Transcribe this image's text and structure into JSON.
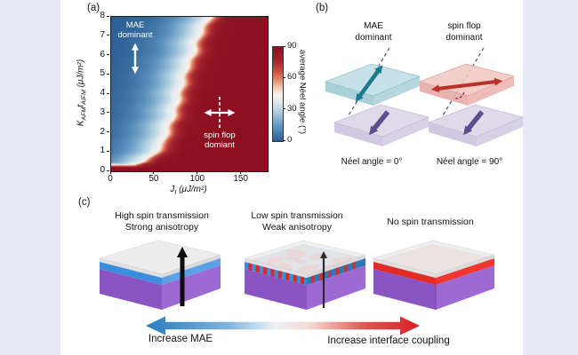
{
  "page": {
    "panel_a_label": "(a)",
    "panel_b_label": "(b)",
    "panel_c_label": "(c)"
  },
  "panel_a": {
    "overlay": {
      "mae_line1": "MAE",
      "mae_line2": "dominant",
      "sf_line1": "spin flop",
      "sf_line2": "domiant"
    },
    "axis": {
      "xlabel_sym": "J",
      "xlabel_sub": "I",
      "xlabel_units": " (μJ/m²)",
      "ylabel_k": "K",
      "ylabel_k_sub": "AFM",
      "ylabel_t": "t",
      "ylabel_t_sub": "AIFM",
      "ylabel_units": " (μJ/m²)"
    },
    "colorbar_label": "average Néel angle (°)"
  },
  "chart_data": {
    "type": "heatmap",
    "title": "",
    "xlabel": "J_I (μJ/m²)",
    "ylabel": "K_AFM t_AIFM (μJ/m²)",
    "xlim": [
      0,
      180
    ],
    "ylim": [
      0,
      8
    ],
    "xticks": [
      0,
      50,
      100,
      150
    ],
    "yticks": [
      0,
      1,
      2,
      3,
      4,
      5,
      6,
      7,
      8
    ],
    "value_label": "average Néel angle (°)",
    "value_range": [
      0,
      90
    ],
    "colorbar_ticks": [
      90,
      60,
      30,
      0
    ],
    "regions": [
      {
        "label": "MAE dominant",
        "neel_angle": 0,
        "location": "upper-left"
      },
      {
        "label": "spin flop domiant",
        "neel_angle": 90,
        "location": "lower-right"
      }
    ],
    "phase_boundary_x_of_y": [
      [
        0.0,
        2
      ],
      [
        0.25,
        18
      ],
      [
        0.5,
        38
      ],
      [
        1.0,
        52
      ],
      [
        1.5,
        60
      ],
      [
        2.0,
        64
      ],
      [
        2.5,
        68
      ],
      [
        3.0,
        73
      ],
      [
        3.5,
        76
      ],
      [
        4.0,
        79
      ],
      [
        4.5,
        82
      ],
      [
        5.0,
        85
      ],
      [
        5.5,
        88
      ],
      [
        6.0,
        95
      ],
      [
        6.5,
        97
      ],
      [
        7.0,
        101
      ],
      [
        7.5,
        107
      ],
      [
        8.0,
        114
      ]
    ],
    "bottom_red_band_y": 0.18,
    "colormap_stops": [
      [
        0.0,
        "#2a5d92"
      ],
      [
        0.15,
        "#5f94bf"
      ],
      [
        0.3,
        "#a8cadf"
      ],
      [
        0.42,
        "#e3ecf0"
      ],
      [
        0.5,
        "#f7efe9"
      ],
      [
        0.58,
        "#f0c3ab"
      ],
      [
        0.66,
        "#dd8263"
      ],
      [
        0.75,
        "#c64a41"
      ],
      [
        0.85,
        "#a62631"
      ],
      [
        1.0,
        "#8c1020"
      ]
    ]
  },
  "panel_b": {
    "left": {
      "title_line1": "MAE",
      "title_line2": "dominant",
      "caption": "Néel angle = 0°"
    },
    "right": {
      "title_line1": "spin flop",
      "title_line2": "dominant",
      "caption": "Néel angle = 90°"
    }
  },
  "panel_c": {
    "items": [
      {
        "line1": "High spin transmission",
        "line2": "Strong anisotropy"
      },
      {
        "line1": "Low spin transmission",
        "line2": "Weak anisotropy"
      },
      {
        "line1": "No spin transmission",
        "line2": ""
      }
    ],
    "arrow_left_label": "Increase MAE",
    "arrow_right_label": "Increase interface coupling"
  },
  "icons": {
    "mae_axis_icon": "vertical-double-arrow",
    "spin_flop_icon": "dashed-axis-with-horizontal-double-arrow"
  },
  "colors": {
    "background": "#e8e9f7",
    "page": "#ffffff",
    "heat_dark_red": "#8c1020",
    "heat_dark_blue": "#2a5d92",
    "afm_slab": "#bcdde4",
    "afm_arrow": "#1b7a8d",
    "sf_slab": "#f3c6c2",
    "sf_arrow": "#b83227",
    "fm_slab": "#ded7e9",
    "fm_arrow": "#5c4d8e",
    "box_layer_blue": "#3b8ede",
    "box_layer_red": "#e22a26",
    "box_purple": "#9a63cf",
    "grad_arrow_blue": "#2a7cbf",
    "grad_arrow_red": "#d81f26"
  }
}
